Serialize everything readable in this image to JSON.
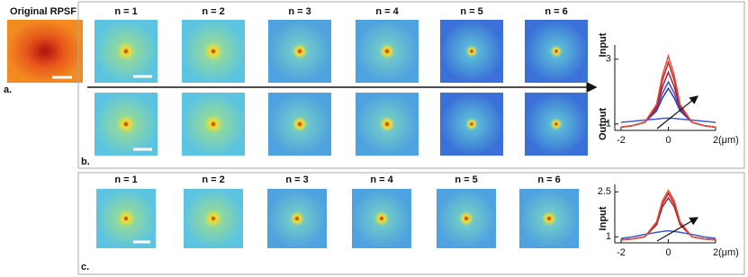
{
  "panel_a": {
    "title": "Original RPSF",
    "label": "a."
  },
  "panel_b": {
    "label": "b.",
    "column_labels": [
      "n = 1",
      "n = 2",
      "n = 3",
      "n = 4",
      "n = 5",
      "n = 6"
    ]
  },
  "panel_c": {
    "label": "c.",
    "column_labels": [
      "n = 1",
      "n = 2",
      "n = 3",
      "n = 4",
      "n = 5",
      "n = 6"
    ]
  },
  "chart_data": [
    {
      "type": "line",
      "ylabel": "Input",
      "output_label": "Output",
      "xunit": "(μm)",
      "xlim": [
        -2,
        2
      ],
      "xticks": [
        -2,
        0,
        2
      ],
      "ylim": [
        0.8,
        3.3
      ],
      "yticks": [
        1,
        3
      ],
      "x": [
        -2,
        -1.5,
        -1,
        -0.5,
        -0.25,
        0,
        0.25,
        0.5,
        1,
        1.5,
        2
      ],
      "series": [
        {
          "color": "#3b5bd1",
          "values": [
            1.05,
            1.08,
            1.12,
            1.15,
            1.17,
            1.18,
            1.17,
            1.15,
            1.12,
            1.08,
            1.05
          ]
        },
        {
          "color": "#2a3aa8",
          "values": [
            0.9,
            0.95,
            1.05,
            1.4,
            1.8,
            2.1,
            1.8,
            1.4,
            1.05,
            0.95,
            0.9
          ]
        },
        {
          "color": "#4a4ad8",
          "values": [
            0.9,
            0.95,
            1.05,
            1.45,
            1.95,
            2.3,
            1.95,
            1.45,
            1.05,
            0.95,
            0.9
          ]
        },
        {
          "color": "#a0203a",
          "values": [
            0.9,
            0.95,
            1.05,
            1.5,
            2.15,
            2.6,
            2.15,
            1.5,
            1.05,
            0.95,
            0.9
          ]
        },
        {
          "color": "#c81e1e",
          "values": [
            0.9,
            0.95,
            1.05,
            1.55,
            2.35,
            2.9,
            2.35,
            1.55,
            1.05,
            0.95,
            0.9
          ]
        },
        {
          "color": "#e0503a",
          "values": [
            0.9,
            0.95,
            1.05,
            1.6,
            2.5,
            3.1,
            2.5,
            1.6,
            1.05,
            0.95,
            0.9
          ]
        }
      ]
    },
    {
      "type": "line",
      "ylabel": "Input",
      "xunit": "(μm)",
      "xlim": [
        -2,
        2
      ],
      "xticks": [
        -2,
        0,
        2
      ],
      "ylim": [
        0.8,
        2.6
      ],
      "yticks": [
        1,
        2.5
      ],
      "x": [
        -2,
        -1.5,
        -1,
        -0.5,
        -0.25,
        0,
        0.25,
        0.5,
        1,
        1.5,
        2
      ],
      "series": [
        {
          "color": "#3b5bd1",
          "values": [
            0.95,
            1.0,
            1.08,
            1.15,
            1.18,
            1.2,
            1.18,
            1.15,
            1.08,
            1.0,
            0.95
          ]
        },
        {
          "color": "#a0203a",
          "values": [
            0.9,
            0.93,
            1.0,
            1.4,
            2.0,
            2.3,
            2.0,
            1.4,
            1.0,
            0.93,
            0.9
          ]
        },
        {
          "color": "#c81e1e",
          "values": [
            0.9,
            0.93,
            1.0,
            1.45,
            2.1,
            2.45,
            2.1,
            1.45,
            1.0,
            0.93,
            0.9
          ]
        },
        {
          "color": "#e0503a",
          "values": [
            0.9,
            0.93,
            1.0,
            1.5,
            2.2,
            2.55,
            2.2,
            1.5,
            1.0,
            0.93,
            0.9
          ]
        }
      ]
    }
  ]
}
